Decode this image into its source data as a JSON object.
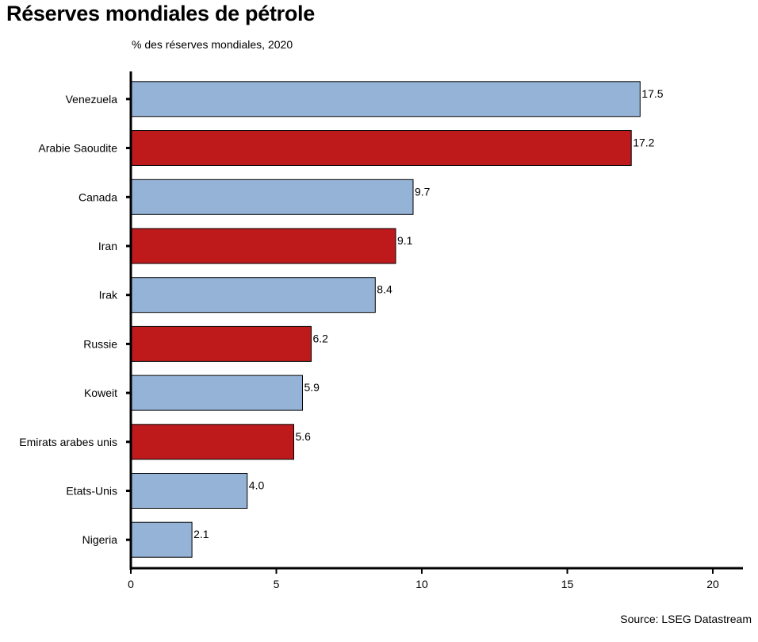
{
  "title": "Réserves mondiales de pétrole",
  "subtitle": "% des réserves mondiales, 2020",
  "source": "Source: LSEG Datastream",
  "colors": {
    "blue": "#95B3D7",
    "red": "#BE1A1C"
  },
  "chart_data": {
    "type": "bar",
    "orientation": "horizontal",
    "categories": [
      "Venezuela",
      "Arabie Saoudite",
      "Canada",
      "Iran",
      "Irak",
      "Russie",
      "Koweit",
      "Emirats arabes unis",
      "Etats-Unis",
      "Nigeria"
    ],
    "values": [
      17.5,
      17.2,
      9.7,
      9.1,
      8.4,
      6.2,
      5.9,
      5.6,
      4.0,
      2.1
    ],
    "value_labels": [
      "17.5",
      "17.2",
      "9.7",
      "9.1",
      "8.4",
      "6.2",
      "5.9",
      "5.6",
      "4.0",
      "2.1"
    ],
    "bar_colors": [
      "blue",
      "red",
      "blue",
      "red",
      "blue",
      "red",
      "blue",
      "red",
      "blue",
      "blue"
    ],
    "xlim": [
      0,
      21
    ],
    "xticks": [
      0,
      5,
      10,
      15,
      20
    ],
    "grid": false,
    "legend": "none"
  }
}
